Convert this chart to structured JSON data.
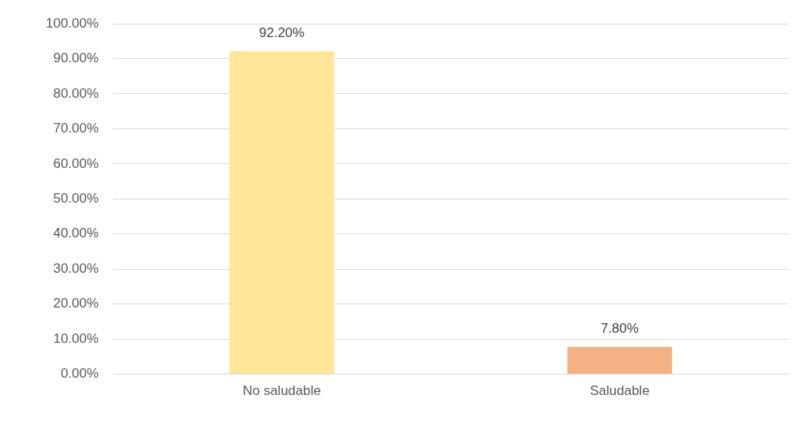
{
  "chart_data": {
    "type": "bar",
    "categories": [
      "No saludable",
      "Saludable"
    ],
    "values": [
      92.2,
      7.8
    ],
    "colors": [
      "#ffe699",
      "#f4b183"
    ],
    "value_labels": [
      "92.20%",
      "7.80%"
    ],
    "ylim": [
      0,
      100
    ],
    "yticks": [
      {
        "value": 0,
        "label": "0.00%"
      },
      {
        "value": 10,
        "label": "10.00%"
      },
      {
        "value": 20,
        "label": "20.00%"
      },
      {
        "value": 30,
        "label": "30.00%"
      },
      {
        "value": 40,
        "label": "40.00%"
      },
      {
        "value": 50,
        "label": "50.00%"
      },
      {
        "value": 60,
        "label": "60.00%"
      },
      {
        "value": 70,
        "label": "70.00%"
      },
      {
        "value": 80,
        "label": "80.00%"
      },
      {
        "value": 90,
        "label": "90.00%"
      },
      {
        "value": 100,
        "label": "100.00%"
      }
    ],
    "grid": "y",
    "legend": false
  }
}
